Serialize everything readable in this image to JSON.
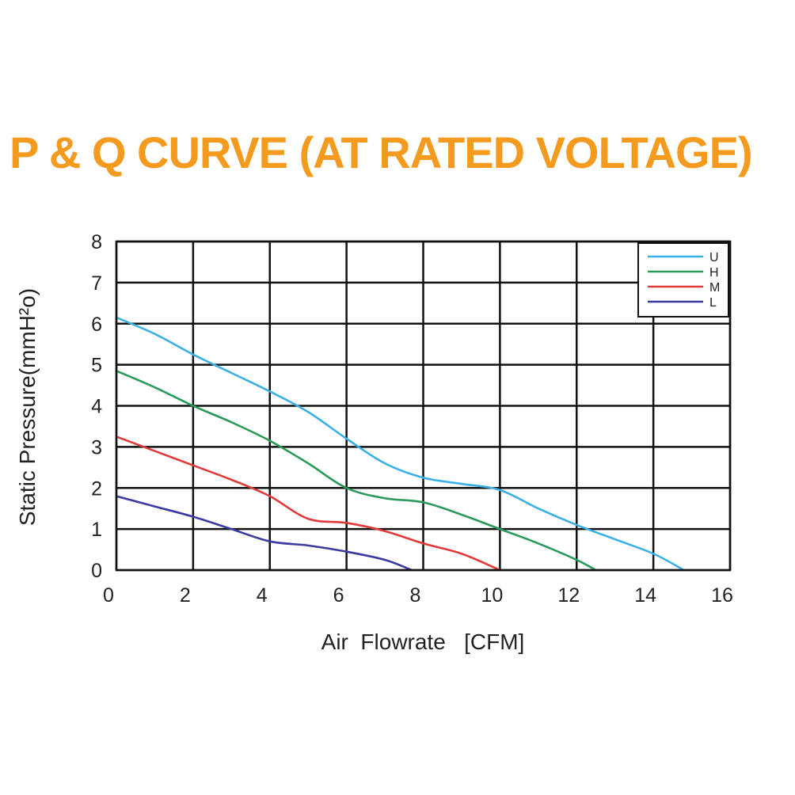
{
  "chart_data": {
    "type": "line",
    "title": "P & Q CURVE (AT RATED VOLTAGE)",
    "xlabel": "Air  Flowrate   [CFM]",
    "ylabel": "Static Pressure(mmH²o)",
    "xlim": [
      0,
      16
    ],
    "ylim": [
      0,
      8
    ],
    "xticks": [
      0,
      2,
      4,
      6,
      8,
      10,
      12,
      14,
      16
    ],
    "yticks": [
      0,
      1,
      2,
      3,
      4,
      5,
      6,
      7,
      8
    ],
    "grid": true,
    "legend_position": "top-right",
    "series": [
      {
        "name": "U",
        "color": "#3ab0e6",
        "x": [
          0,
          1,
          2,
          3,
          4,
          5,
          6,
          7,
          8,
          9,
          10,
          11,
          12,
          13,
          14,
          14.8
        ],
        "y": [
          6.15,
          5.75,
          5.25,
          4.8,
          4.35,
          3.85,
          3.2,
          2.6,
          2.25,
          2.1,
          1.95,
          1.5,
          1.1,
          0.75,
          0.4,
          0.0
        ]
      },
      {
        "name": "H",
        "color": "#2a9a5a",
        "x": [
          0,
          1,
          2,
          3,
          4,
          5,
          6,
          7,
          8,
          9,
          10,
          11,
          12,
          12.5
        ],
        "y": [
          4.85,
          4.45,
          4.0,
          3.6,
          3.15,
          2.6,
          2.0,
          1.75,
          1.65,
          1.35,
          1.0,
          0.65,
          0.25,
          0.0
        ]
      },
      {
        "name": "M",
        "color": "#e03a3a",
        "x": [
          0,
          1,
          2,
          3,
          4,
          5,
          6,
          7,
          8,
          9,
          10
        ],
        "y": [
          3.25,
          2.9,
          2.55,
          2.2,
          1.8,
          1.25,
          1.15,
          0.95,
          0.65,
          0.4,
          0.0
        ]
      },
      {
        "name": "L",
        "color": "#3a3aa0",
        "x": [
          0,
          1,
          2,
          3,
          4,
          5,
          6,
          7,
          7.7
        ],
        "y": [
          1.8,
          1.55,
          1.3,
          1.0,
          0.7,
          0.6,
          0.45,
          0.25,
          0.0
        ]
      }
    ]
  }
}
